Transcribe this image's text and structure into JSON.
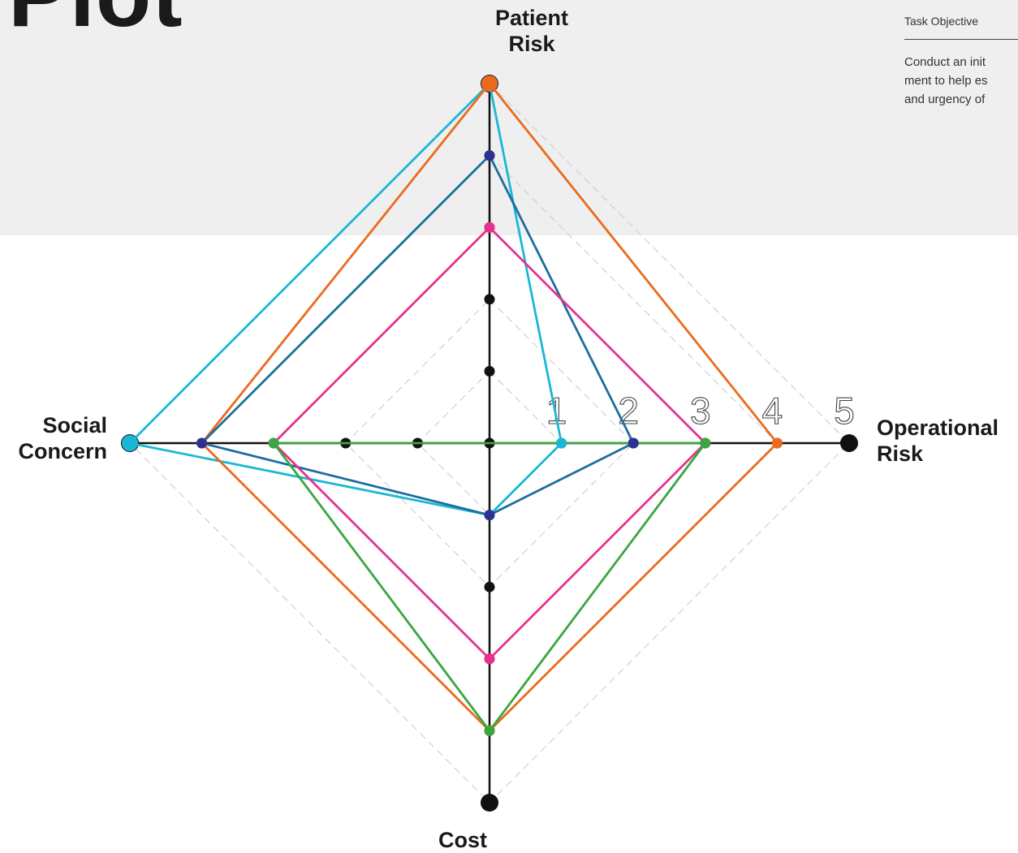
{
  "title": "Plot",
  "panel": {
    "label": "Task Objective",
    "lines": [
      "Conduct an init",
      "ment to help es",
      "and urgency of"
    ]
  },
  "chart_data": {
    "type": "radar",
    "axes": [
      "Patient Risk",
      "Operational Risk",
      "Cost",
      "Social Concern"
    ],
    "axis_label_lines": {
      "Patient Risk": [
        "Patient",
        "Risk"
      ],
      "Operational Risk": [
        "Operational",
        "Risk"
      ],
      "Cost": [
        "Cost"
      ],
      "Social Concern": [
        "Social",
        "Concern"
      ]
    },
    "scale": [
      0,
      5
    ],
    "tick_labels": [
      "1",
      "2",
      "3",
      "4",
      "5"
    ],
    "grid": "dashed diamonds",
    "series": [
      {
        "color": "#1ab8d4",
        "values": {
          "Patient Risk": 5,
          "Operational Risk": 1,
          "Cost": 1,
          "Social Concern": 5
        }
      },
      {
        "color": "#ec6a1e",
        "values": {
          "Patient Risk": 5,
          "Operational Risk": 4,
          "Cost": 4,
          "Social Concern": 4
        }
      },
      {
        "color": "#1d6e9c",
        "marker": "#2e3192",
        "values": {
          "Patient Risk": 4,
          "Operational Risk": 2,
          "Cost": 1,
          "Social Concern": 4
        }
      },
      {
        "color": "#e8318f",
        "values": {
          "Patient Risk": 3,
          "Operational Risk": 3,
          "Cost": 3,
          "Social Concern": 3
        }
      },
      {
        "color": "#3aa63f",
        "values": {
          "Patient Risk": 0,
          "Operational Risk": 3,
          "Cost": 4,
          "Social Concern": 3
        }
      }
    ]
  }
}
